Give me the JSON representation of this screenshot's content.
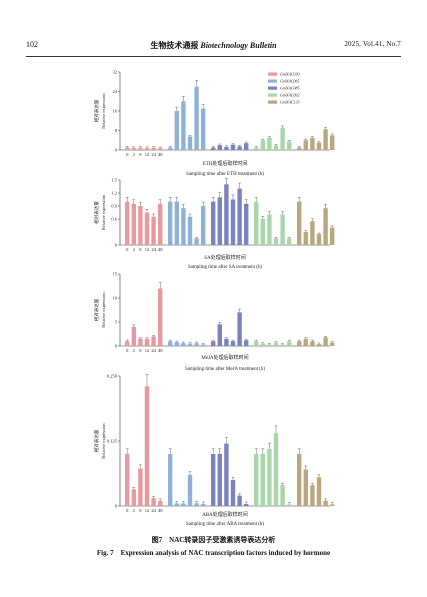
{
  "header": {
    "page_number": "102",
    "journal_cn": "生物技术通报",
    "journal_en": "Biotechnology Bulletin",
    "volume": "2025, Vol.41, No.7"
  },
  "legend": [
    "GmNAC030",
    "GmNAC065",
    "GmNAC085",
    "GmNAC092",
    "GmNAC133"
  ],
  "colors": [
    "#e79a9e",
    "#8fb1d8",
    "#7a83c0",
    "#a9d5ab",
    "#b9a77f"
  ],
  "ylabel_cn": "相对表达量",
  "ylabel_en": "Relative expression",
  "time_ticks": [
    "0",
    "2",
    "8",
    "12",
    "24",
    "48"
  ],
  "panels": [
    {
      "name": "ETH",
      "xlabel_cn": "ETH处理后取样时间",
      "xlabel_en": "Sampling time after ETH treatment (h)",
      "yticks": [
        "0",
        "8",
        "16",
        "24",
        "32"
      ],
      "ymax": 32,
      "show_legend": true,
      "values": [
        [
          1.0,
          0.8,
          0.9,
          0.8,
          0.9,
          0.7
        ],
        [
          1.0,
          16.0,
          20.0,
          5.5,
          26.0,
          17.0
        ],
        [
          1.0,
          2.0,
          1.3,
          2.2,
          1.5,
          2.8
        ],
        [
          1.0,
          4.0,
          5.0,
          1.8,
          9.0,
          3.5
        ],
        [
          1.0,
          4.0,
          5.0,
          3.0,
          8.5,
          6.0
        ]
      ]
    },
    {
      "name": "SA",
      "xlabel_cn": "SA处理后取样时间",
      "xlabel_en": "Sampling time after SA treatment (h)",
      "yticks": [
        "0",
        "0.6",
        "0.9",
        "1.2",
        "1.5"
      ],
      "ymax": 1.5,
      "show_legend": false,
      "values": [
        [
          1.0,
          0.95,
          0.9,
          0.75,
          0.65,
          0.95
        ],
        [
          1.0,
          1.0,
          0.85,
          0.65,
          0.15,
          0.9
        ],
        [
          1.0,
          1.1,
          1.4,
          1.05,
          1.3,
          0.95
        ],
        [
          1.0,
          0.6,
          0.7,
          0.15,
          0.7,
          0.15
        ],
        [
          1.0,
          0.3,
          0.55,
          0.25,
          0.85,
          0.4
        ]
      ]
    },
    {
      "name": "MeJA",
      "xlabel_cn": "MeJA处理后取样时间",
      "xlabel_en": "Sampling time after MeJA treatment (h)",
      "yticks": [
        "0",
        "5",
        "10",
        "15"
      ],
      "ymax": 15,
      "show_legend": false,
      "values": [
        [
          1.0,
          4.0,
          1.5,
          1.5,
          2.0,
          12.0
        ],
        [
          1.0,
          0.8,
          0.6,
          0.5,
          0.6,
          0.3
        ],
        [
          1.0,
          4.5,
          1.5,
          1.0,
          7.0,
          1.2
        ],
        [
          1.0,
          0.5,
          0.3,
          0.7,
          0.3,
          1.0
        ],
        [
          1.0,
          1.5,
          1.0,
          0.4,
          1.8,
          0.7
        ]
      ]
    },
    {
      "name": "ABA",
      "xlabel_cn": "ABA处理后取样时间",
      "xlabel_en": "Sampling time after ABA treatment (h)",
      "yticks": [
        "0",
        "0.125",
        "0.250"
      ],
      "ymax": 0.25,
      "show_legend": false,
      "values": [
        [
          0.1,
          0.032,
          0.072,
          0.23,
          0.015,
          0.01
        ],
        [
          0.1,
          0.005,
          0.005,
          0.06,
          0.005,
          0.004
        ],
        [
          0.1,
          0.1,
          0.12,
          0.05,
          0.02,
          0.004
        ],
        [
          0.1,
          0.1,
          0.11,
          0.14,
          0.04,
          0.003
        ],
        [
          0.1,
          0.07,
          0.04,
          0.055,
          0.01,
          0.003
        ]
      ]
    }
  ],
  "caption_cn": "图7　NAC转录因子受激素诱导表达分析",
  "caption_en": "Fig. 7　Expression analysis of NAC transcription factors induced by hormone"
}
